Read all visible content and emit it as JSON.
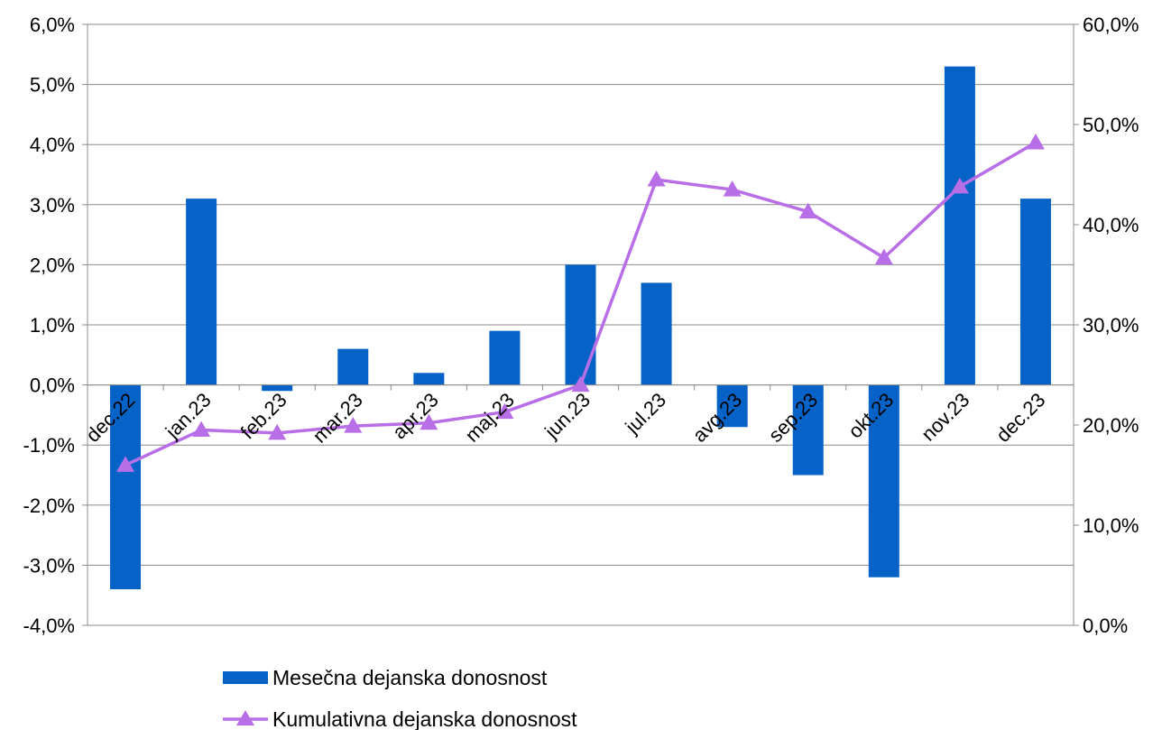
{
  "chart_data": {
    "type": "bar",
    "categories": [
      "dec.22",
      "jan.23",
      "feb.23",
      "mar.23",
      "apr.23",
      "maj.23",
      "jun.23",
      "jul.23",
      "avg.23",
      "sep.23",
      "okt.23",
      "nov.23",
      "dec.23"
    ],
    "series": [
      {
        "name": "Mesečna dejanska donosnost",
        "type": "bar",
        "axis": "left",
        "color": "#0563C8",
        "values": [
          -3.4,
          3.1,
          -0.1,
          0.6,
          0.2,
          0.9,
          2.0,
          1.7,
          -0.7,
          -1.5,
          -3.2,
          5.3,
          3.1
        ]
      },
      {
        "name": "Kumulativna dejanska donosnost",
        "type": "line",
        "axis": "right",
        "color": "#B86EE6",
        "marker": "triangle",
        "values": [
          16.0,
          19.5,
          19.2,
          19.9,
          20.2,
          21.3,
          24.0,
          44.5,
          43.5,
          41.3,
          36.7,
          43.8,
          48.2
        ]
      }
    ],
    "y_left": {
      "ylim": [
        -4,
        6
      ],
      "ticks": [
        -4,
        -3,
        -2,
        -1,
        0,
        1,
        2,
        3,
        4,
        5,
        6
      ],
      "tick_labels": [
        "-4,0%",
        "-3,0%",
        "-2,0%",
        "-1,0%",
        "0,0%",
        "1,0%",
        "2,0%",
        "3,0%",
        "4,0%",
        "5,0%",
        "6,0%"
      ]
    },
    "y_right": {
      "ylim": [
        0,
        60
      ],
      "ticks": [
        0,
        10,
        20,
        30,
        40,
        50,
        60
      ],
      "tick_labels": [
        "0,0%",
        "10,0%",
        "20,0%",
        "30,0%",
        "40,0%",
        "50,0%",
        "60,0%"
      ]
    },
    "grid": true,
    "legend": "bottom",
    "title": "",
    "xlabel": "",
    "ylabel": ""
  }
}
